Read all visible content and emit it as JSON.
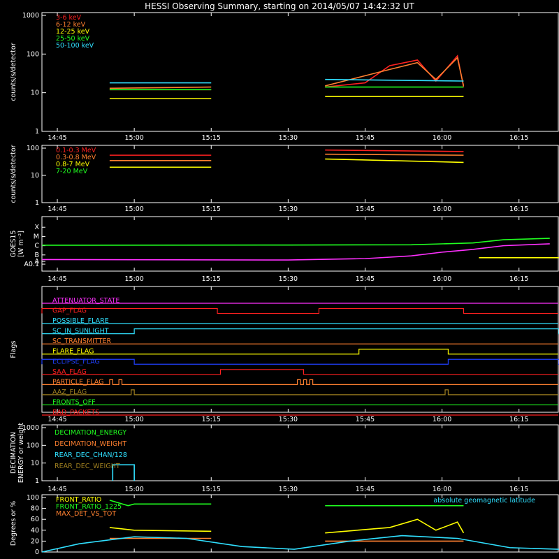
{
  "title": "HESSI Observing Summary, starting on 2014/05/07 14:42:32 UT",
  "time_ticks": [
    "14:45",
    "15:00",
    "15:15",
    "15:30",
    "15:45",
    "16:00",
    "16:15"
  ],
  "chart_data": [
    {
      "type": "line",
      "panel": "lightcurve",
      "ylabel": "counts/s/detector",
      "y_log": true,
      "ylim": [
        1,
        1000
      ],
      "y_ticks": [
        "1",
        "10",
        "100",
        "1000"
      ],
      "series": [
        {
          "name": "3-6 keV",
          "color": "#ff2020",
          "segments": [
            {
              "x": [
                14.92,
                15.0,
                15.25
              ],
              "y": [
                12,
                12,
                12
              ]
            },
            {
              "x": [
                15.62,
                15.75,
                15.83,
                15.92,
                15.98,
                16.05,
                16.07
              ],
              "y": [
                14,
                18,
                50,
                70,
                20,
                90,
                14
              ]
            }
          ]
        },
        {
          "name": "6-12 keV",
          "color": "#ff8030",
          "segments": [
            {
              "x": [
                14.92,
                15.25
              ],
              "y": [
                13,
                14
              ]
            },
            {
              "x": [
                15.62,
                15.83,
                15.92,
                15.98,
                16.05,
                16.07
              ],
              "y": [
                15,
                40,
                60,
                22,
                80,
                15
              ]
            }
          ]
        },
        {
          "name": "12-25 keV",
          "color": "#ffff00",
          "segments": [
            {
              "x": [
                14.92,
                15.25
              ],
              "y": [
                7,
                7
              ]
            },
            {
              "x": [
                15.62,
                16.07
              ],
              "y": [
                8,
                8
              ]
            }
          ]
        },
        {
          "name": "25-50 keV",
          "color": "#20ff20",
          "segments": [
            {
              "x": [
                14.92,
                15.25
              ],
              "y": [
                12,
                12
              ]
            },
            {
              "x": [
                15.62,
                16.07
              ],
              "y": [
                14,
                14
              ]
            }
          ]
        },
        {
          "name": "50-100 keV",
          "color": "#30e0ff",
          "segments": [
            {
              "x": [
                14.92,
                15.25
              ],
              "y": [
                18,
                18
              ]
            },
            {
              "x": [
                15.62,
                16.07
              ],
              "y": [
                22,
                20
              ]
            }
          ]
        }
      ]
    },
    {
      "type": "line",
      "panel": "high_energy",
      "ylabel": "counts/s/detector",
      "y_log": true,
      "ylim": [
        1,
        100
      ],
      "y_ticks": [
        "1",
        "10",
        "100"
      ],
      "series": [
        {
          "name": "0.1-0.3 MeV",
          "color": "#ff2020",
          "segments": [
            {
              "x": [
                14.92,
                15.25
              ],
              "y": [
                55,
                55
              ]
            },
            {
              "x": [
                15.62,
                16.07
              ],
              "y": [
                85,
                75
              ]
            }
          ]
        },
        {
          "name": "0.3-0.8 MeV",
          "color": "#ff8030",
          "segments": [
            {
              "x": [
                14.92,
                15.25
              ],
              "y": [
                35,
                35
              ]
            },
            {
              "x": [
                15.62,
                16.07
              ],
              "y": [
                60,
                55
              ]
            }
          ]
        },
        {
          "name": "0.8-7 MeV",
          "color": "#ffff00",
          "segments": [
            {
              "x": [
                14.92,
                15.25
              ],
              "y": [
                20,
                20
              ]
            },
            {
              "x": [
                15.62,
                16.07
              ],
              "y": [
                40,
                30
              ]
            }
          ]
        },
        {
          "name": "7-20 MeV",
          "color": "#20ff20",
          "segments": []
        }
      ]
    },
    {
      "type": "line",
      "panel": "goes",
      "ylabel": "GOES15",
      "ylabel_unit": "[W m⁻²]",
      "y_ticks": [
        "A0.1",
        "A",
        "B",
        "C",
        "M",
        "X"
      ],
      "series": [
        {
          "name": "",
          "color": "#20ff20",
          "segments": [
            {
              "x": [
                14.7,
                15.5,
                15.9,
                16.1,
                16.2,
                16.35
              ],
              "y": [
                2.05,
                2.07,
                2.1,
                2.3,
                2.65,
                2.8
              ]
            }
          ]
        },
        {
          "name": "",
          "color": "#ff30ff",
          "segments": [
            {
              "x": [
                14.7,
                15.5,
                15.75,
                15.9,
                16.0,
                16.1,
                16.2,
                16.35
              ],
              "y": [
                0.5,
                0.45,
                0.6,
                0.9,
                1.3,
                1.6,
                2.0,
                2.2
              ]
            }
          ]
        },
        {
          "name": "",
          "color": "#ffff00",
          "segments": [
            {
              "x": [
                16.12,
                16.38
              ],
              "y": [
                0.7,
                0.7
              ]
            }
          ]
        }
      ]
    },
    {
      "type": "line",
      "panel": "flags",
      "ylabel": "Flags",
      "flags": [
        {
          "name": "ATTENUATOR_STATE",
          "color": "#ff30ff",
          "on": []
        },
        {
          "name": "GAP_FLAG",
          "color": "#ff2020",
          "on": [
            [
              14.7,
              15.27
            ],
            [
              15.6,
              16.07
            ]
          ]
        },
        {
          "name": "POSSIBLE_FLARE",
          "color": "#30e0ff",
          "on": []
        },
        {
          "name": "SC_IN_SUNLIGHT",
          "color": "#30e0ff",
          "on": [
            [
              15.0,
              16.38
            ]
          ]
        },
        {
          "name": "SC_TRANSMITTER",
          "color": "#ff8030",
          "on": []
        },
        {
          "name": "FLARE_FLAG",
          "color": "#ffff00",
          "on": [
            [
              15.73,
              16.02
            ]
          ]
        },
        {
          "name": "ECLIPSE_FLAG",
          "color": "#2040ff",
          "on": [
            [
              14.7,
              15.0
            ],
            [
              16.02,
              16.38
            ]
          ]
        },
        {
          "name": "SAA_FLAG",
          "color": "#ff2020",
          "on": [
            [
              15.28,
              15.55
            ]
          ]
        },
        {
          "name": "PARTICLE_FLAG",
          "color": "#ff8030",
          "on": [
            [
              14.92,
              14.93
            ],
            [
              14.95,
              14.96
            ],
            [
              15.53,
              15.54
            ],
            [
              15.55,
              15.56
            ],
            [
              15.57,
              15.58
            ]
          ]
        },
        {
          "name": "AAZ_FLAG",
          "color": "#a08020",
          "on": [
            [
              14.99,
              15.0
            ],
            [
              16.01,
              16.02
            ]
          ]
        },
        {
          "name": "FRONTS_OFF",
          "color": "#20ff20",
          "on": []
        },
        {
          "name": "BAD_PACKETS",
          "color": "#ff2020",
          "on": []
        }
      ]
    },
    {
      "type": "line",
      "panel": "decimation",
      "ylabel": "DECIMATION ENERGY or weight",
      "y_log": true,
      "ylim": [
        1,
        1000
      ],
      "y_ticks": [
        "1",
        "10",
        "100",
        "1000"
      ],
      "series": [
        {
          "name": "DECIMATION_ENERGY",
          "color": "#20ff20",
          "segments": []
        },
        {
          "name": "DECIMATION_WEIGHT",
          "color": "#ff8030",
          "segments": []
        },
        {
          "name": "REAR_DEC_CHAN/128",
          "color": "#30e0ff",
          "segments": [
            {
              "x": [
                14.93,
                14.93,
                15.0,
                15.0
              ],
              "y": [
                1,
                8,
                8,
                1
              ]
            }
          ]
        },
        {
          "name": "REAR_DEC_WEIGHT",
          "color": "#a08020",
          "segments": []
        }
      ]
    },
    {
      "type": "line",
      "panel": "ratios",
      "ylabel": "Degrees or %",
      "ylim": [
        0,
        100
      ],
      "y_ticks": [
        "0",
        "20",
        "40",
        "60",
        "80",
        "100"
      ],
      "series": [
        {
          "name": "FRONT_RATIO",
          "color": "#ffff00",
          "segments": [
            {
              "x": [
                14.92,
                15.0,
                15.25
              ],
              "y": [
                45,
                40,
                38
              ]
            },
            {
              "x": [
                15.62,
                15.83,
                15.92,
                15.98,
                16.05,
                16.07
              ],
              "y": [
                35,
                45,
                60,
                40,
                55,
                35
              ]
            }
          ]
        },
        {
          "name": "FRONT_RATIO_1225",
          "color": "#20ff20",
          "segments": [
            {
              "x": [
                14.92,
                14.98,
                15.0,
                15.25
              ],
              "y": [
                95,
                85,
                88,
                88
              ]
            },
            {
              "x": [
                15.62,
                16.07
              ],
              "y": [
                85,
                85
              ]
            }
          ]
        },
        {
          "name": "MAX_DET_VS_TOT",
          "color": "#ff8030",
          "segments": [
            {
              "x": [
                14.92,
                15.25
              ],
              "y": [
                25,
                25
              ]
            },
            {
              "x": [
                15.62,
                16.07
              ],
              "y": [
                20,
                20
              ]
            }
          ]
        },
        {
          "name": "absolute geomagnetic latitude",
          "color": "#30e0ff",
          "segments": [
            {
              "x": [
                14.7,
                14.82,
                15.0,
                15.17,
                15.35,
                15.52,
                15.7,
                15.87,
                16.05,
                16.22,
                16.38
              ],
              "y": [
                0,
                15,
                28,
                25,
                10,
                5,
                20,
                30,
                25,
                8,
                5
              ]
            }
          ]
        }
      ]
    }
  ]
}
